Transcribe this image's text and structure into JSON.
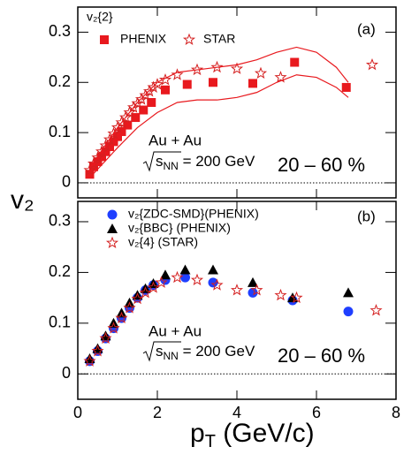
{
  "chart_data": [
    {
      "type": "scatter",
      "label": "(a)",
      "legend_title": "v₂{2}",
      "system": "Au + Au",
      "energy": [
        "s",
        "NN",
        " = 200 GeV"
      ],
      "centrality": "20 – 60 %",
      "y_label": "v₂",
      "xlim": [
        0,
        8
      ],
      "ylim": [
        -0.03,
        0.35
      ],
      "yticks": [
        0,
        0.1,
        0.2,
        0.3
      ],
      "series": [
        {
          "name": "PHENIX",
          "marker": "square",
          "color": "#e8191e",
          "x": [
            0.3,
            0.4,
            0.5,
            0.6,
            0.7,
            0.8,
            0.9,
            1.0,
            1.1,
            1.25,
            1.45,
            1.65,
            1.85,
            2.2,
            2.75,
            3.4,
            4.4,
            5.45,
            6.75
          ],
          "values": [
            0.017,
            0.032,
            0.042,
            0.052,
            0.062,
            0.072,
            0.082,
            0.092,
            0.102,
            0.115,
            0.13,
            0.145,
            0.16,
            0.185,
            0.196,
            0.2,
            0.198,
            0.24,
            0.19
          ]
        },
        {
          "name": "STAR",
          "marker": "star",
          "color": "#d42020",
          "x": [
            0.3,
            0.4,
            0.5,
            0.6,
            0.7,
            0.8,
            0.9,
            1.0,
            1.1,
            1.2,
            1.3,
            1.4,
            1.5,
            1.6,
            1.7,
            1.8,
            1.9,
            2.0,
            2.2,
            2.5,
            3.0,
            3.5,
            4.0,
            4.6,
            5.1,
            7.4
          ],
          "values": [
            0.025,
            0.038,
            0.05,
            0.062,
            0.074,
            0.086,
            0.098,
            0.11,
            0.12,
            0.13,
            0.14,
            0.15,
            0.158,
            0.166,
            0.174,
            0.182,
            0.19,
            0.196,
            0.205,
            0.215,
            0.225,
            0.23,
            0.227,
            0.218,
            0.21,
            0.235
          ]
        },
        {
          "marker": "line",
          "color": "#e8191e",
          "x": [
            0.3,
            1.0,
            1.5,
            2.0,
            2.5,
            3.0,
            3.5,
            4.0,
            4.5,
            5.0,
            5.5,
            6.0,
            6.5,
            6.8
          ],
          "values": [
            0.03,
            0.11,
            0.16,
            0.2,
            0.22,
            0.225,
            0.23,
            0.235,
            0.245,
            0.26,
            0.27,
            0.26,
            0.23,
            0.2
          ]
        },
        {
          "marker": "line",
          "color": "#e8191e",
          "x": [
            0.3,
            1.0,
            1.5,
            2.0,
            2.5,
            3.0,
            3.5,
            4.0,
            4.5,
            5.0,
            5.5,
            6.0,
            6.5,
            6.8
          ],
          "values": [
            0.01,
            0.07,
            0.11,
            0.14,
            0.16,
            0.165,
            0.165,
            0.17,
            0.18,
            0.2,
            0.215,
            0.21,
            0.19,
            0.17
          ]
        }
      ]
    },
    {
      "type": "scatter",
      "label": "(b)",
      "system": "Au + Au",
      "energy": [
        "s",
        "NN",
        " = 200 GeV"
      ],
      "centrality": "20 – 60 %",
      "x_label": [
        "p",
        "T",
        " (GeV/c)"
      ],
      "xlim": [
        0,
        8
      ],
      "xticks": [
        0,
        2,
        4,
        6,
        8
      ],
      "ylim": [
        -0.05,
        0.34
      ],
      "yticks": [
        0,
        0.1,
        0.2,
        0.3
      ],
      "series": [
        {
          "name": "v₂{ZDC-SMD}(PHENIX)",
          "marker": "circle",
          "color": "#1f3fff",
          "x": [
            0.3,
            0.5,
            0.7,
            0.9,
            1.1,
            1.3,
            1.5,
            1.7,
            1.9,
            2.2,
            2.7,
            3.4,
            4.4,
            5.4,
            6.8
          ],
          "values": [
            0.025,
            0.045,
            0.07,
            0.09,
            0.11,
            0.13,
            0.15,
            0.165,
            0.175,
            0.185,
            0.19,
            0.18,
            0.16,
            0.145,
            0.123
          ]
        },
        {
          "name": "v₂{BBC} (PHENIX)",
          "marker": "triangle",
          "color": "#000000",
          "x": [
            0.3,
            0.5,
            0.7,
            0.9,
            1.1,
            1.3,
            1.5,
            1.7,
            1.9,
            2.2,
            2.7,
            3.4,
            4.4,
            5.4,
            6.8
          ],
          "values": [
            0.03,
            0.05,
            0.075,
            0.1,
            0.12,
            0.14,
            0.155,
            0.168,
            0.178,
            0.195,
            0.205,
            0.205,
            0.18,
            0.15,
            0.16
          ]
        },
        {
          "name": "v₂{4} (STAR)",
          "marker": "star",
          "color": "#d42020",
          "x": [
            0.3,
            0.5,
            0.7,
            0.9,
            1.1,
            1.3,
            1.5,
            1.7,
            1.9,
            2.1,
            2.5,
            3.0,
            3.5,
            4.0,
            4.5,
            5.1,
            5.5,
            7.5
          ],
          "values": [
            0.025,
            0.045,
            0.07,
            0.09,
            0.11,
            0.13,
            0.148,
            0.16,
            0.17,
            0.18,
            0.19,
            0.185,
            0.175,
            0.165,
            0.165,
            0.155,
            0.15,
            0.125
          ]
        }
      ]
    }
  ]
}
